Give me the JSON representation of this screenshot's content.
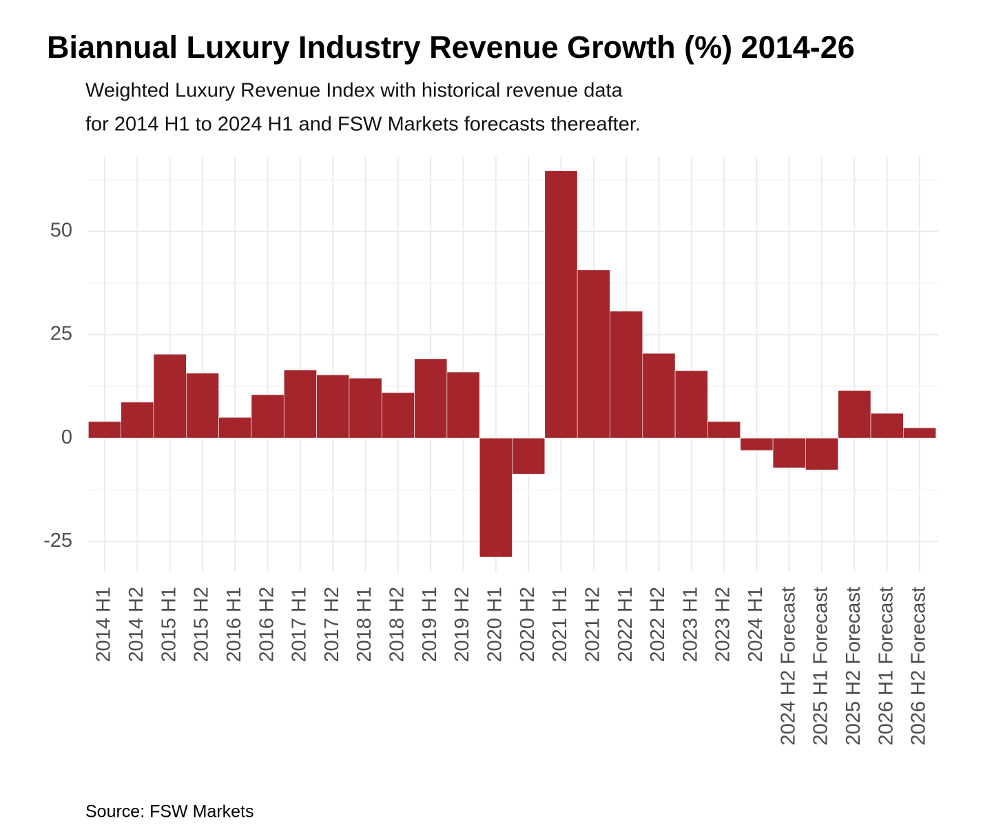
{
  "chart_data": {
    "type": "bar",
    "title": "Biannual Luxury Industry Revenue Growth (%) 2014-26",
    "subtitle": [
      "Weighted Luxury Revenue Index with historical revenue data",
      "for 2014 H1 to 2024 H1 and FSW Markets forecasts thereafter."
    ],
    "source": "Source: FSW Markets",
    "categories": [
      "2014 H1",
      "2014 H2",
      "2015 H1",
      "2015 H2",
      "2016 H1",
      "2016 H2",
      "2017 H1",
      "2017 H2",
      "2018 H1",
      "2018 H2",
      "2019 H1",
      "2019 H2",
      "2020 H1",
      "2020 H2",
      "2021 H1",
      "2021 H2",
      "2022 H1",
      "2022 H2",
      "2023 H1",
      "2023 H2",
      "2024 H1",
      "2024 H2 Forecast",
      "2025 H1 Forecast",
      "2025 H2 Forecast",
      "2026 H1 Forecast",
      "2026 H2 Forecast"
    ],
    "values": [
      4,
      8.7,
      20.3,
      15.7,
      5,
      10.5,
      16.5,
      15.3,
      14.5,
      11,
      19.2,
      16,
      -28.8,
      -8.7,
      64.7,
      40.7,
      30.7,
      20.5,
      16.3,
      4,
      -3,
      -7.2,
      -7.7,
      11.5,
      6,
      2.5
    ],
    "color": "#a4262c",
    "ylim": [
      -32.3,
      68
    ],
    "yticks": [
      -25,
      0,
      25,
      50
    ],
    "yminor": [
      -12.5,
      12.5,
      37.5,
      62.5
    ],
    "grid": true
  }
}
